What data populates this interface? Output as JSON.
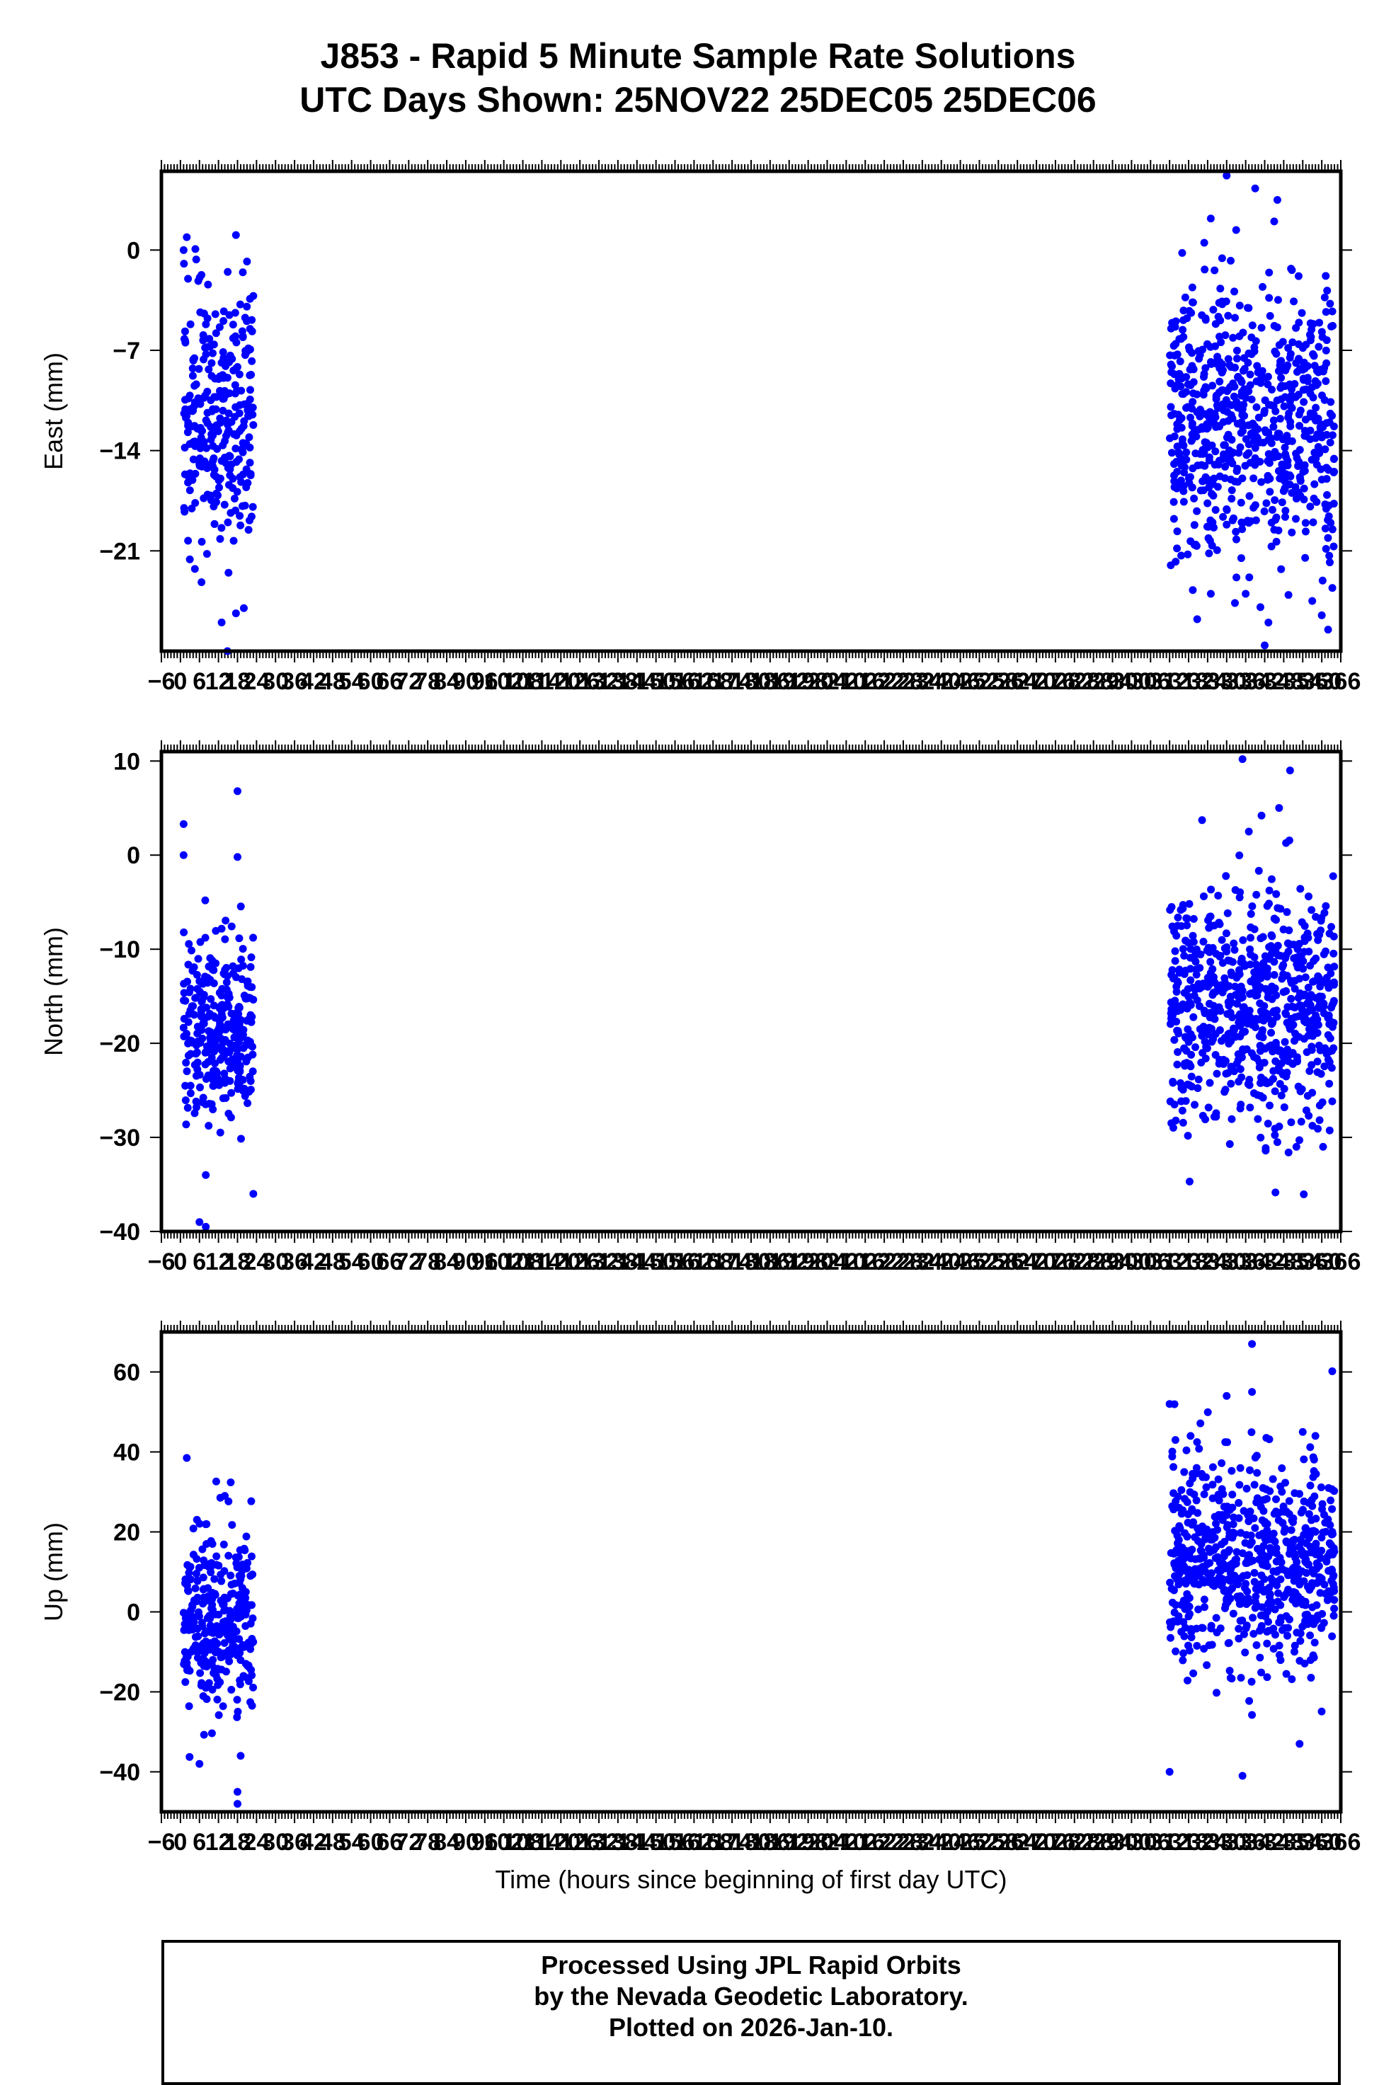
{
  "title": {
    "line1": "J853 - Rapid 5 Minute Sample Rate Solutions",
    "line2": "UTC Days Shown:  25NOV22 25DEC05 25DEC06"
  },
  "xlabel": "Time (hours since beginning of first day UTC)",
  "footer": {
    "line1": "Processed Using JPL Rapid Orbits",
    "line2": "by the Nevada Geodetic Laboratory.",
    "line3": "Plotted on 2026-Jan-10."
  },
  "colors": {
    "points": "#0000ff",
    "axes": "#000000"
  },
  "chart_data": [
    {
      "type": "scatter",
      "ylabel": "East (mm)",
      "xlim": [
        -6,
        366
      ],
      "ylim": [
        -28,
        5.5
      ],
      "yticks": [
        0,
        -7,
        -14,
        -21
      ],
      "x_tick_step": 6,
      "grid": false,
      "clusters": [
        {
          "x_range": [
            1,
            23
          ],
          "center": -12,
          "spread": 4.5,
          "count": 300,
          "seed": 11
        },
        {
          "x_range": [
            312,
            364
          ],
          "center": -12,
          "spread": 4.5,
          "count": 700,
          "seed": 12
        }
      ],
      "outliers": [
        {
          "x": 2,
          "y": 0.9
        },
        {
          "x": 1,
          "y": 0
        },
        {
          "x": 13,
          "y": -26
        },
        {
          "x": 21,
          "y": -0.8
        },
        {
          "x": 23,
          "y": -3.2
        },
        {
          "x": 20,
          "y": -25
        },
        {
          "x": 330,
          "y": 5.2
        },
        {
          "x": 339,
          "y": 4.3
        },
        {
          "x": 346,
          "y": 3.5
        },
        {
          "x": 325,
          "y": 2.2
        },
        {
          "x": 333,
          "y": 1.4
        },
        {
          "x": 345,
          "y": 2
        },
        {
          "x": 342,
          "y": -27.6
        },
        {
          "x": 325,
          "y": -24
        },
        {
          "x": 360,
          "y": -25.5
        },
        {
          "x": 357,
          "y": -24.5
        },
        {
          "x": 362,
          "y": -26.5
        },
        {
          "x": 336,
          "y": -24
        }
      ]
    },
    {
      "type": "scatter",
      "ylabel": "North (mm)",
      "xlim": [
        -6,
        366
      ],
      "ylim": [
        -40,
        11
      ],
      "yticks": [
        10,
        0,
        -10,
        -20,
        -30,
        -40
      ],
      "x_tick_step": 6,
      "grid": false,
      "clusters": [
        {
          "x_range": [
            1,
            23
          ],
          "center": -18,
          "spread": 5,
          "count": 300,
          "seed": 21
        },
        {
          "x_range": [
            312,
            364
          ],
          "center": -16,
          "spread": 6,
          "count": 700,
          "seed": 22
        }
      ],
      "outliers": [
        {
          "x": 1,
          "y": 3.3
        },
        {
          "x": 1,
          "y": 0
        },
        {
          "x": 18,
          "y": 6.8
        },
        {
          "x": 18,
          "y": -0.2
        },
        {
          "x": 6,
          "y": -39
        },
        {
          "x": 8,
          "y": -39.5
        },
        {
          "x": 23,
          "y": -36
        },
        {
          "x": 8,
          "y": -34
        },
        {
          "x": 335,
          "y": 10.2
        },
        {
          "x": 350,
          "y": 9
        },
        {
          "x": 341,
          "y": 4.2
        },
        {
          "x": 337,
          "y": 2.5
        },
        {
          "x": 352,
          "y": -31
        },
        {
          "x": 346,
          "y": -30.5
        }
      ]
    },
    {
      "type": "scatter",
      "ylabel": "Up (mm)",
      "xlim": [
        -6,
        366
      ],
      "ylim": [
        -50,
        70
      ],
      "yticks": [
        60,
        40,
        20,
        0,
        -20,
        -40
      ],
      "x_tick_step": 6,
      "grid": false,
      "clusters": [
        {
          "x_range": [
            1,
            23
          ],
          "center": -2,
          "spread": 12,
          "count": 300,
          "seed": 31
        },
        {
          "x_range": [
            312,
            364
          ],
          "center": 12,
          "spread": 13,
          "count": 700,
          "seed": 32
        }
      ],
      "outliers": [
        {
          "x": 2,
          "y": 38.5
        },
        {
          "x": 14,
          "y": 29
        },
        {
          "x": 18,
          "y": -45
        },
        {
          "x": 18,
          "y": -48
        },
        {
          "x": 19,
          "y": -36
        },
        {
          "x": 6,
          "y": -38
        },
        {
          "x": 312,
          "y": 52
        },
        {
          "x": 312,
          "y": -40
        },
        {
          "x": 338,
          "y": 67
        },
        {
          "x": 338,
          "y": 55
        },
        {
          "x": 330,
          "y": 54
        },
        {
          "x": 335,
          "y": -41
        },
        {
          "x": 354,
          "y": 45
        },
        {
          "x": 358,
          "y": 44
        },
        {
          "x": 353,
          "y": -33
        }
      ]
    }
  ]
}
